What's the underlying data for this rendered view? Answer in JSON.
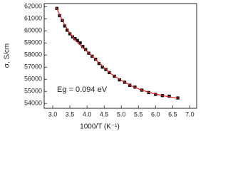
{
  "chart_data": {
    "type": "scatter",
    "xlabel": "1000/T (K⁻¹)",
    "ylabel": "σ, S/cm",
    "annotation": "Eg = 0.094 eV",
    "xlim": [
      2.75,
      7.2
    ],
    "ylim": [
      53600,
      62250
    ],
    "xticks": [
      {
        "value": 3,
        "label": "3.0"
      },
      3.5,
      {
        "value": 4,
        "label": "4.0"
      },
      4.5,
      {
        "value": 5,
        "label": "5.0"
      },
      5.5,
      {
        "value": 6,
        "label": "6.0"
      },
      6.5,
      {
        "value": 7,
        "label": "7.0"
      }
    ],
    "yticks": [
      54000,
      55000,
      56000,
      57000,
      58000,
      59000,
      60000,
      61000,
      62000
    ],
    "series": [
      {
        "type": "scatter",
        "color": "#111111",
        "x": [
          3.12,
          3.2,
          3.28,
          3.35,
          3.42,
          3.5,
          3.58,
          3.65,
          3.72,
          3.8,
          3.88,
          3.96,
          4.05,
          4.15,
          4.25,
          4.35,
          4.45,
          4.55,
          4.65,
          4.8,
          4.95,
          5.1,
          5.25,
          5.4,
          5.6,
          5.8,
          6.0,
          6.2,
          6.4,
          6.65
        ],
        "values": [
          61850,
          61250,
          60850,
          60400,
          60050,
          59750,
          59500,
          59350,
          59200,
          59000,
          58700,
          58450,
          58150,
          57900,
          57650,
          57300,
          57000,
          56800,
          56550,
          56250,
          55950,
          55750,
          55500,
          55350,
          55100,
          54900,
          54750,
          54650,
          54600,
          54450
        ]
      },
      {
        "type": "line",
        "color": "#e02020",
        "x": [
          3.1,
          3.3,
          3.5,
          3.7,
          3.9,
          4.1,
          4.3,
          4.5,
          4.7,
          5.0,
          5.3,
          5.6,
          5.9,
          6.2,
          6.5,
          6.7
        ],
        "values": [
          61950,
          60750,
          59800,
          59100,
          58550,
          58050,
          57500,
          56950,
          56450,
          55900,
          55450,
          55100,
          54850,
          54650,
          54500,
          54420
        ]
      }
    ]
  }
}
